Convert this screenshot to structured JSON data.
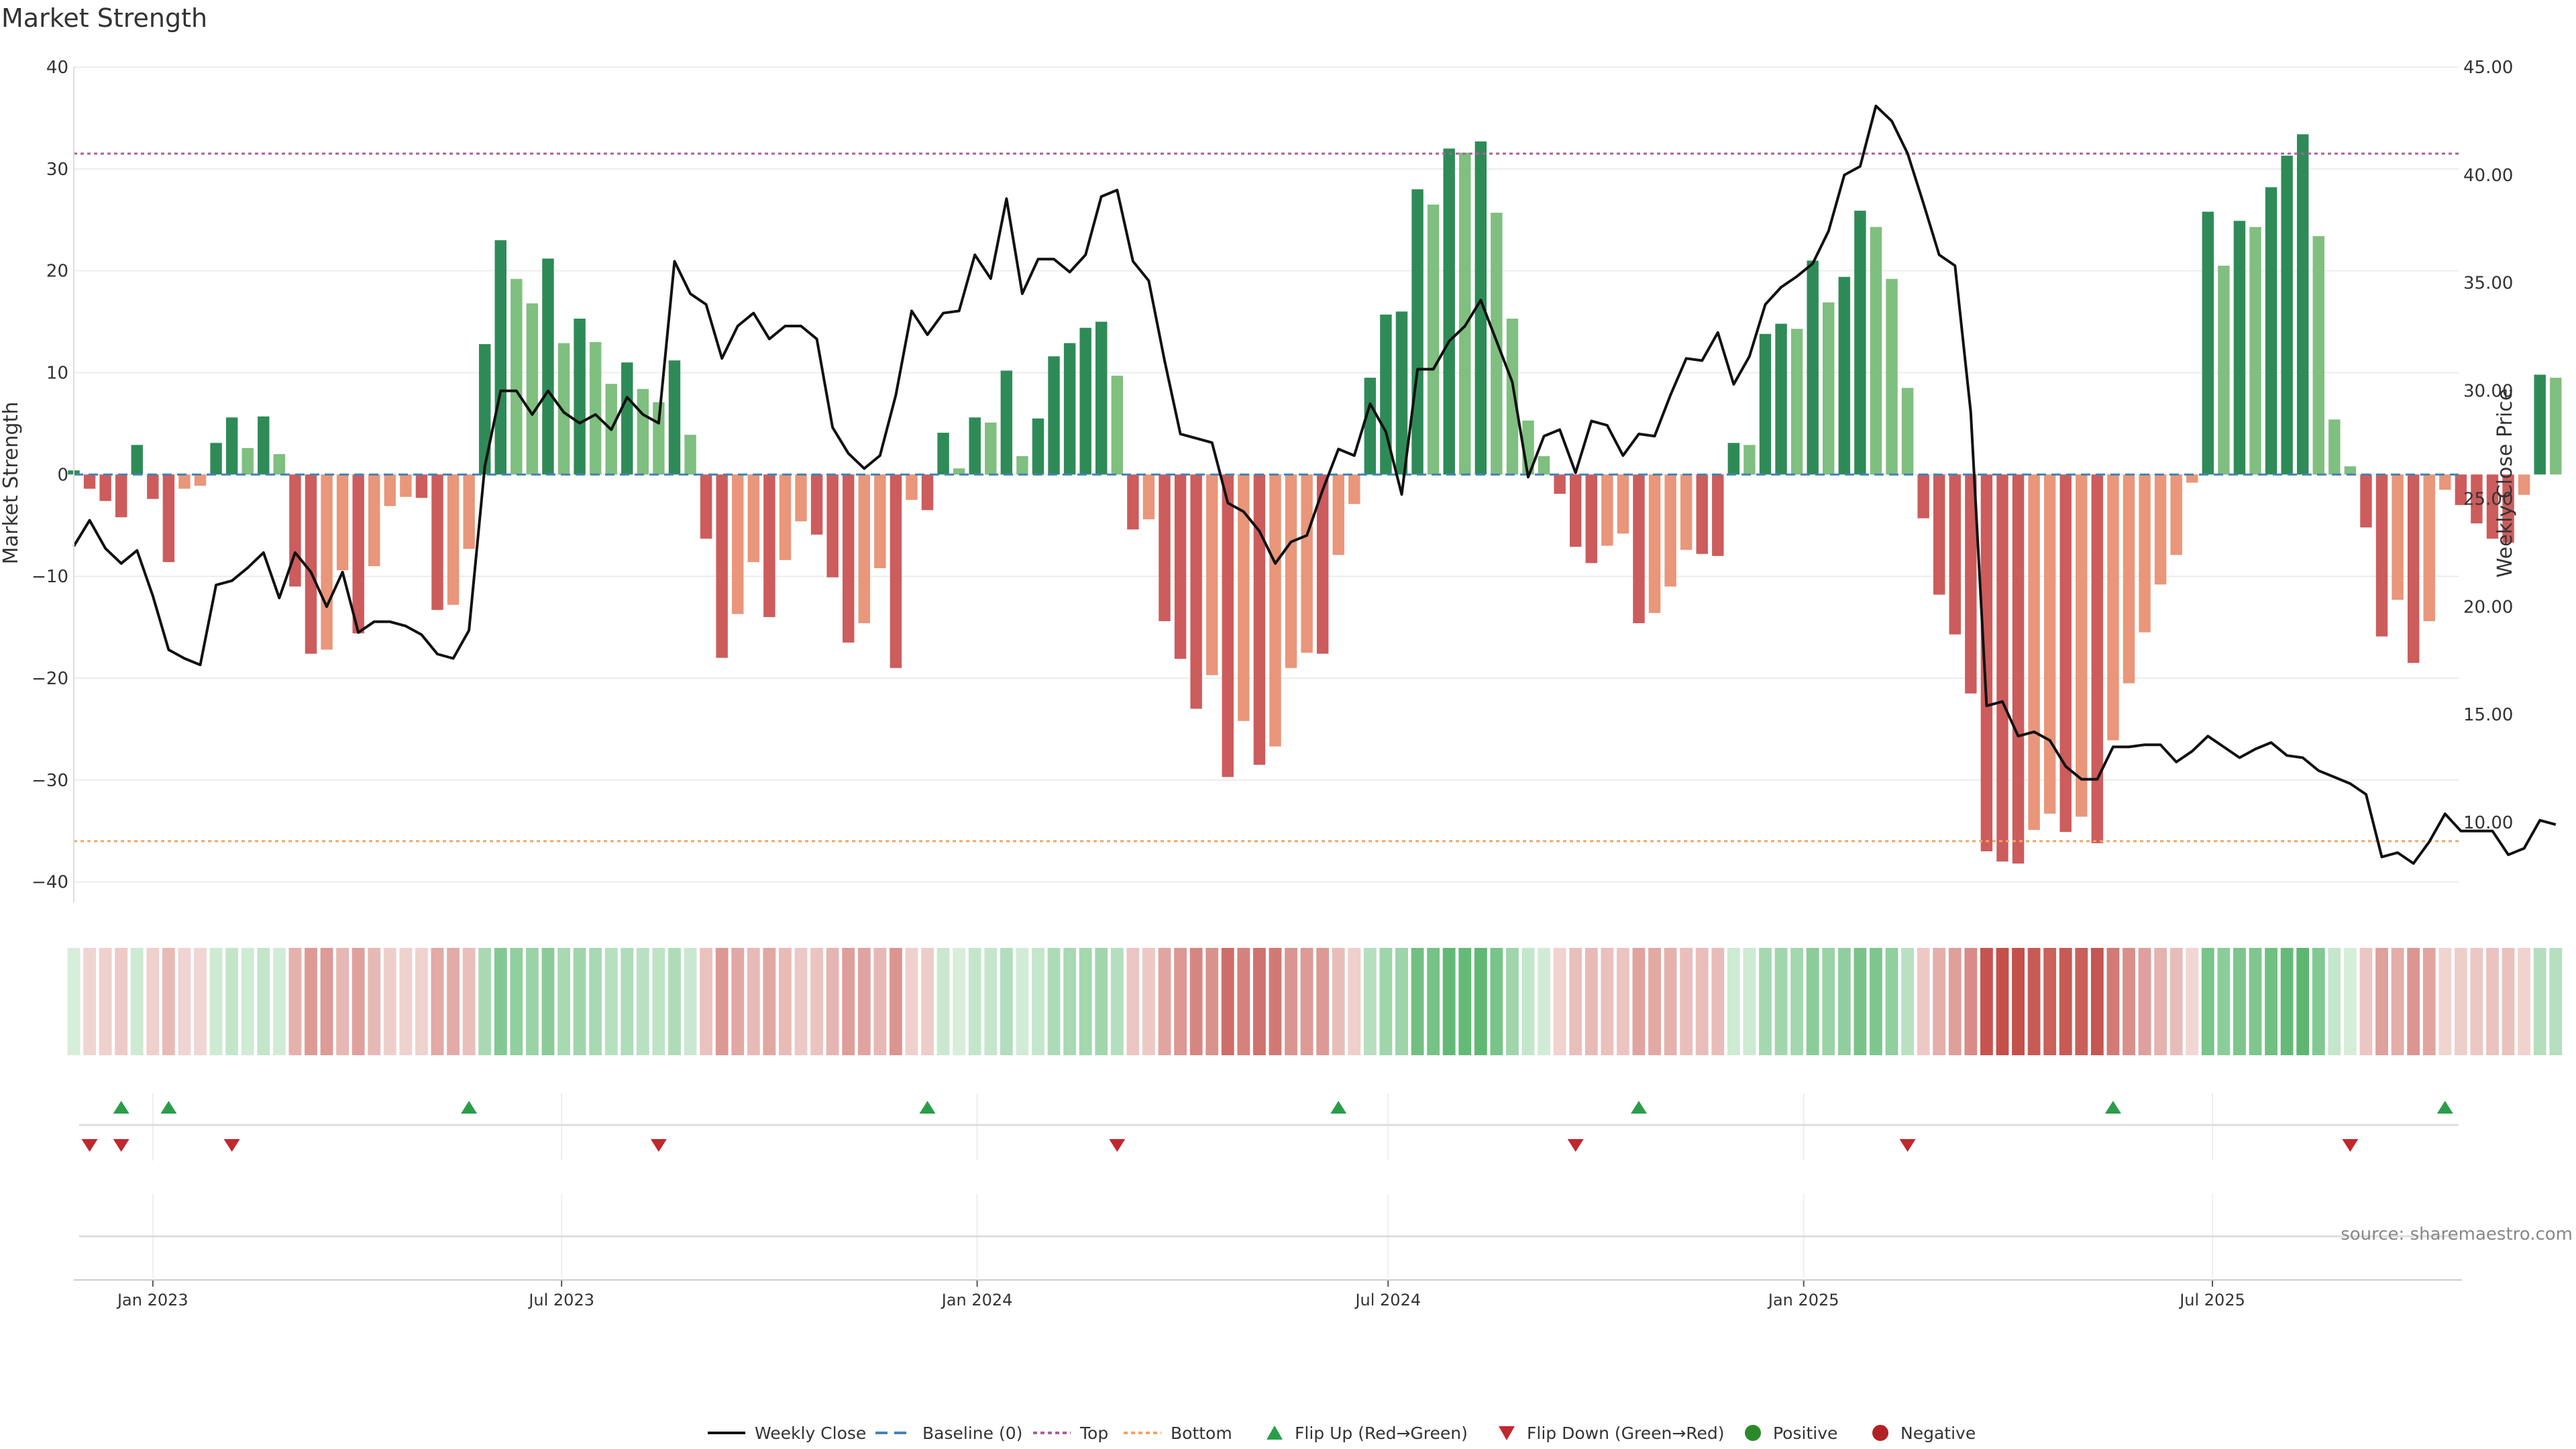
{
  "chart_data": {
    "type": "bar",
    "title": "Market Strength",
    "ylabel": "Market Strength",
    "y2label": "Weekly Close Price",
    "ylim": [
      -42,
      40
    ],
    "y2lim": [
      6.3,
      45.0
    ],
    "yticks": [
      40,
      30,
      20,
      10,
      0,
      -10,
      -20,
      -30,
      -40
    ],
    "yticklabels": [
      "40",
      "30",
      "20",
      "10",
      "0",
      "−10",
      "−20",
      "−30",
      "−40"
    ],
    "y2ticks": [
      45,
      40,
      35,
      30,
      25,
      20,
      15,
      10
    ],
    "y2ticklabels": [
      "45.00",
      "40.00",
      "35.00",
      "30.00",
      "25.00",
      "20.00",
      "15.00",
      "10.00"
    ],
    "x_start": "2022-11-27",
    "x_step_days": 7,
    "x_end": "2025-10-18",
    "xticks": [
      "2023-01-01",
      "2023-07-01",
      "2024-01-01",
      "2024-07-01",
      "2025-01-01",
      "2025-07-01"
    ],
    "xticklabels": [
      "Jan 2023",
      "Jul 2023",
      "Jan 2024",
      "Jul 2024",
      "Jan 2025",
      "Jul 2025"
    ],
    "top_level": 31.5,
    "bottom_level": -36,
    "grid": true,
    "legend_position": "bottom-center",
    "series": [
      {
        "name": "Market Strength",
        "values": [
          0.4,
          -1.4,
          -2.6,
          -4.2,
          2.9,
          -2.4,
          -8.6,
          -1.4,
          -1.1,
          3.1,
          5.6,
          2.6,
          5.7,
          2.0,
          -11.0,
          -17.6,
          -17.2,
          -9.4,
          -15.6,
          -9.0,
          -3.1,
          -2.2,
          -2.3,
          -13.3,
          -12.8,
          -7.3,
          12.8,
          23.0,
          19.2,
          16.8,
          21.2,
          12.9,
          15.3,
          13.0,
          8.9,
          11.0,
          8.4,
          7.1,
          11.2,
          3.9,
          -6.3,
          -18.0,
          -13.7,
          -8.6,
          -14.0,
          -8.4,
          -4.6,
          -5.9,
          -10.1,
          -16.5,
          -14.6,
          -9.2,
          -19.0,
          -2.5,
          -3.5,
          4.1,
          0.6,
          5.6,
          5.1,
          10.2,
          1.8,
          5.5,
          11.6,
          12.9,
          14.4,
          15.0,
          9.7,
          -5.4,
          -4.4,
          -14.4,
          -18.1,
          -23.0,
          -19.7,
          -29.7,
          -24.2,
          -28.5,
          -26.7,
          -19.0,
          -17.5,
          -17.6,
          -7.9,
          -2.9,
          9.5,
          15.7,
          16.0,
          28.0,
          26.5,
          32.0,
          31.6,
          32.7,
          25.7,
          15.3,
          5.3,
          1.8,
          -1.9,
          -7.1,
          -8.7,
          -7.0,
          -5.8,
          -14.6,
          -13.6,
          -11.0,
          -7.4,
          -7.8,
          -8.0,
          3.1,
          2.9,
          13.8,
          14.8,
          14.3,
          21.0,
          16.9,
          19.4,
          25.9,
          24.3,
          19.2,
          8.5,
          -4.3,
          -11.8,
          -15.7,
          -21.5,
          -37.0,
          -38.0,
          -38.2,
          -34.9,
          -33.3,
          -35.1,
          -33.6,
          -36.2,
          -26.1,
          -20.5,
          -15.5,
          -10.8,
          -7.9,
          -0.8,
          25.8,
          20.5,
          24.9,
          24.3,
          28.2,
          31.3,
          33.4,
          23.4,
          5.4,
          0.8,
          -5.2,
          -15.9,
          -12.3,
          -18.5,
          -14.4,
          -1.5,
          -3.0,
          -4.8,
          -6.3,
          -6.7,
          -2.0,
          9.8,
          9.5
        ]
      },
      {
        "name": "Weekly Close",
        "values": [
          22.8,
          24.0,
          22.7,
          22.0,
          22.6,
          20.5,
          18.0,
          17.6,
          17.3,
          21.0,
          21.2,
          21.8,
          22.5,
          20.4,
          22.5,
          21.6,
          20.0,
          21.6,
          18.8,
          19.3,
          19.3,
          19.1,
          18.7,
          17.8,
          17.6,
          18.9,
          26.5,
          30.0,
          30.0,
          28.9,
          30.0,
          29.0,
          28.5,
          28.9,
          28.2,
          29.7,
          28.9,
          28.5,
          36.0,
          34.5,
          34.0,
          31.5,
          33.0,
          33.6,
          32.4,
          33.0,
          33.0,
          32.4,
          28.3,
          27.1,
          26.4,
          27.0,
          29.8,
          33.7,
          32.6,
          33.6,
          33.7,
          36.3,
          35.2,
          38.9,
          34.5,
          36.1,
          36.1,
          35.5,
          36.3,
          39.0,
          39.3,
          36.0,
          35.1,
          31.4,
          28.0,
          27.8,
          27.6,
          24.8,
          24.4,
          23.5,
          22.0,
          23.0,
          23.3,
          25.4,
          27.3,
          27.0,
          29.4,
          28.1,
          25.2,
          31.0,
          31.0,
          32.3,
          33.0,
          34.2,
          32.3,
          30.4,
          26.0,
          27.9,
          28.2,
          26.2,
          28.6,
          28.4,
          27.0,
          28.0,
          27.9,
          29.8,
          31.5,
          31.4,
          32.7,
          30.3,
          31.6,
          34.0,
          34.8,
          35.3,
          35.9,
          37.4,
          40.0,
          40.4,
          43.2,
          42.5,
          41.0,
          38.7,
          36.3,
          35.8,
          29.0,
          15.4,
          15.6,
          14.0,
          14.2,
          13.8,
          12.6,
          12.0,
          12.0,
          13.5,
          13.5,
          13.6,
          13.6,
          12.8,
          13.3,
          14.0,
          13.5,
          13.0,
          13.4,
          13.7,
          13.1,
          13.0,
          12.4,
          12.1,
          11.8,
          11.3,
          8.4,
          8.6,
          8.1,
          9.1,
          10.4,
          9.6,
          9.6,
          9.6,
          8.5,
          8.8,
          10.1,
          9.9
        ]
      }
    ],
    "flip_up_dates": [
      "2022-12-18",
      "2023-01-08",
      "2023-05-21",
      "2023-12-10",
      "2024-06-09",
      "2024-10-20",
      "2025-05-18",
      "2025-10-12"
    ],
    "flip_down_dates": [
      "2022-12-04",
      "2022-12-18",
      "2023-02-05",
      "2023-08-13",
      "2024-03-03",
      "2024-09-22",
      "2025-02-16",
      "2025-08-31"
    ]
  },
  "legend": {
    "items": [
      "Weekly Close",
      "Baseline (0)",
      "Top",
      "Bottom",
      "Flip Up (Red→Green)",
      "Flip Down (Green→Red)",
      "Positive",
      "Negative"
    ]
  },
  "source": "source: sharemaestro.com",
  "colors": {
    "pos_dark": "#2e8b57",
    "pos_light": "#7fbf7f",
    "neg_dark": "#cd5c5c",
    "neg_light": "#e9967a",
    "line": "#111111",
    "baseline": "#4682b4",
    "top": "#b05aa0",
    "bottom": "#f4a460",
    "flip_up": "#2a9d4b",
    "flip_down": "#c0282d",
    "legend_pos": "#2a8a2a",
    "legend_neg": "#b22222"
  }
}
